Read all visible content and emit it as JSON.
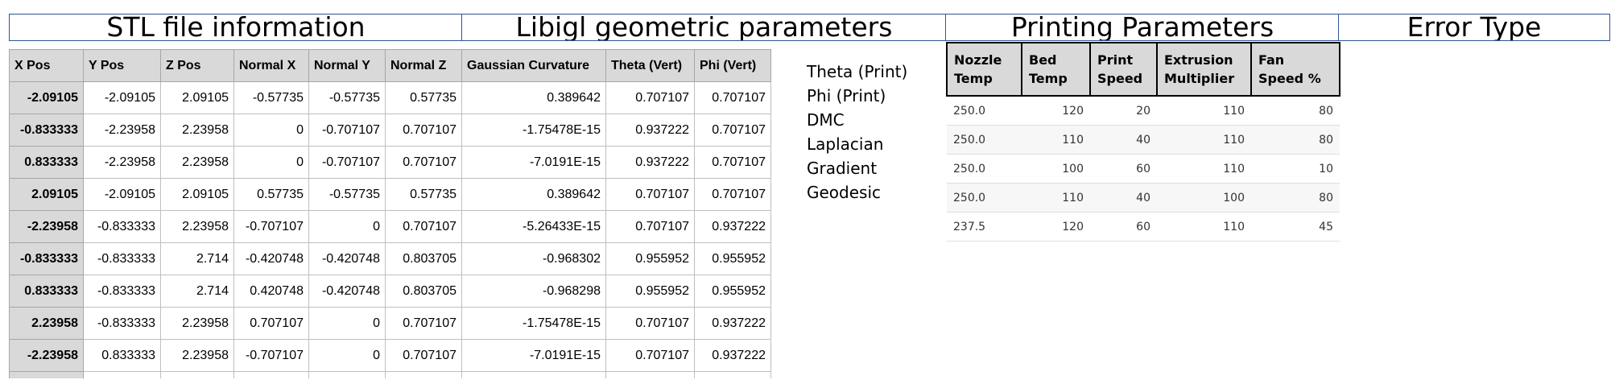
{
  "headers": {
    "stl": "STL file information",
    "libigl": "Libigl geometric parameters",
    "printing": "Printing Parameters",
    "error": "Error Type"
  },
  "stl_table": {
    "columns": [
      "X Pos",
      "Y Pos",
      "Z Pos",
      "Normal X",
      "Normal Y",
      "Normal Z",
      "Gaussian Curvature",
      "Theta (Vert)",
      "Phi (Vert)"
    ],
    "rows": [
      [
        "-2.09105",
        "-2.09105",
        "2.09105",
        "-0.57735",
        "-0.57735",
        "0.57735",
        "0.389642",
        "0.707107",
        "0.707107"
      ],
      [
        "-0.833333",
        "-2.23958",
        "2.23958",
        "0",
        "-0.707107",
        "0.707107",
        "-1.75478E-15",
        "0.937222",
        "0.707107"
      ],
      [
        "0.833333",
        "-2.23958",
        "2.23958",
        "0",
        "-0.707107",
        "0.707107",
        "-7.0191E-15",
        "0.937222",
        "0.707107"
      ],
      [
        "2.09105",
        "-2.09105",
        "2.09105",
        "0.57735",
        "-0.57735",
        "0.57735",
        "0.389642",
        "0.707107",
        "0.707107"
      ],
      [
        "-2.23958",
        "-0.833333",
        "2.23958",
        "-0.707107",
        "0",
        "0.707107",
        "-5.26433E-15",
        "0.707107",
        "0.937222"
      ],
      [
        "-0.833333",
        "-0.833333",
        "2.714",
        "-0.420748",
        "-0.420748",
        "0.803705",
        "-0.968302",
        "0.955952",
        "0.955952"
      ],
      [
        "0.833333",
        "-0.833333",
        "2.714",
        "0.420748",
        "-0.420748",
        "0.803705",
        "-0.968298",
        "0.955952",
        "0.955952"
      ],
      [
        "2.23958",
        "-0.833333",
        "2.23958",
        "0.707107",
        "0",
        "0.707107",
        "-1.75478E-15",
        "0.707107",
        "0.937222"
      ],
      [
        "-2.23958",
        "0.833333",
        "2.23958",
        "-0.707107",
        "0",
        "0.707107",
        "-7.0191E-15",
        "0.707107",
        "0.937222"
      ]
    ]
  },
  "param_list": [
    "Theta (Print)",
    "Phi (Print)",
    "DMC",
    "Laplacian",
    "Gradient",
    "Geodesic"
  ],
  "print_table": {
    "columns": [
      "Nozzle Temp",
      "Bed Temp",
      "Print Speed",
      "Extrusion Multiplier",
      "Fan Speed %"
    ],
    "rows": [
      [
        "250.0",
        "120",
        "20",
        "110",
        "80"
      ],
      [
        "250.0",
        "110",
        "40",
        "110",
        "80"
      ],
      [
        "250.0",
        "100",
        "60",
        "110",
        "10"
      ],
      [
        "250.0",
        "110",
        "40",
        "100",
        "80"
      ],
      [
        "237.5",
        "120",
        "60",
        "110",
        "45"
      ]
    ]
  }
}
